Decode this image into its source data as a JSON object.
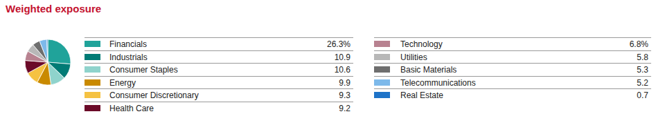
{
  "chart_data": {
    "type": "pie",
    "title": "Weighted exposure",
    "categories": [
      "Financials",
      "Industrials",
      "Consumer Staples",
      "Energy",
      "Consumer Discretionary",
      "Health Care",
      "Technology",
      "Utilities",
      "Basic Materials",
      "Telecommunications",
      "Real Estate"
    ],
    "values": [
      26.3,
      10.9,
      10.6,
      9.9,
      9.3,
      9.2,
      6.8,
      5.8,
      5.3,
      5.2,
      0.7
    ],
    "value_labels": [
      "26.3%",
      "10.9",
      "10.6",
      "9.9",
      "9.3",
      "9.2",
      "6.8%",
      "5.8",
      "5.3",
      "5.2",
      "0.7"
    ],
    "colors": [
      "#20a39a",
      "#007b75",
      "#8fd3cc",
      "#c98a00",
      "#f5c242",
      "#6b0a28",
      "#b88290",
      "#b8b8b8",
      "#6e6e6e",
      "#7db9ea",
      "#1e73c8"
    ]
  }
}
